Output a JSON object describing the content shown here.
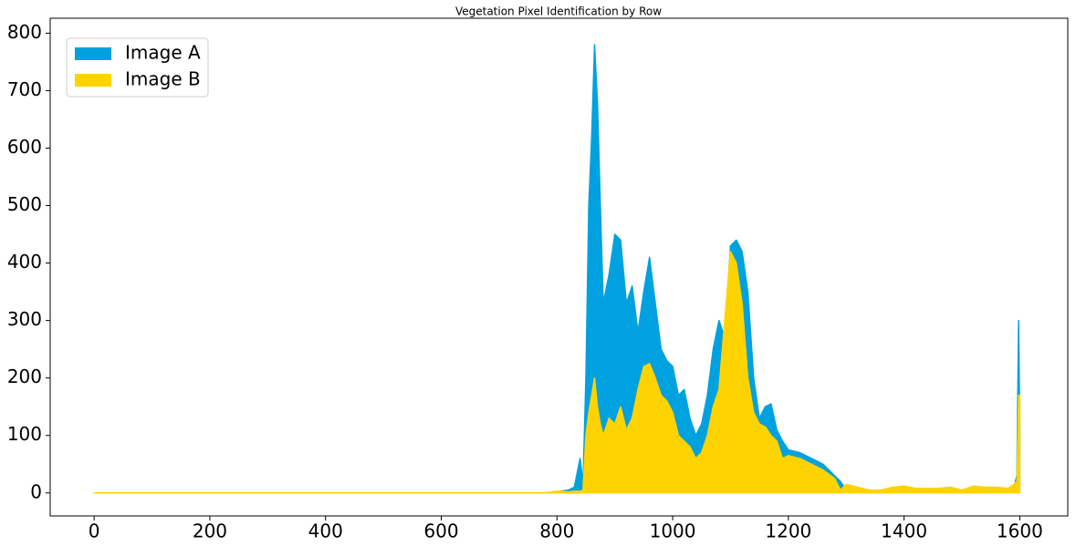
{
  "chart_data": {
    "type": "area",
    "title": "Vegetation Pixel Identification by Row",
    "x": [
      0,
      780,
      800,
      820,
      830,
      840,
      845,
      850,
      855,
      860,
      865,
      870,
      875,
      880,
      890,
      900,
      910,
      920,
      930,
      940,
      950,
      960,
      970,
      980,
      990,
      1000,
      1010,
      1020,
      1030,
      1040,
      1050,
      1060,
      1070,
      1080,
      1090,
      1100,
      1110,
      1120,
      1130,
      1140,
      1150,
      1160,
      1170,
      1180,
      1190,
      1200,
      1220,
      1240,
      1260,
      1280,
      1290,
      1300,
      1320,
      1340,
      1360,
      1380,
      1400,
      1420,
      1440,
      1460,
      1480,
      1500,
      1520,
      1540,
      1560,
      1580,
      1590,
      1595,
      1598,
      1600
    ],
    "series": [
      {
        "name": "Image A",
        "color": "#00a1df",
        "values": [
          0,
          0,
          2,
          5,
          10,
          60,
          15,
          200,
          500,
          620,
          780,
          680,
          500,
          330,
          380,
          450,
          440,
          330,
          360,
          280,
          350,
          410,
          330,
          250,
          230,
          220,
          170,
          180,
          130,
          100,
          120,
          170,
          250,
          300,
          270,
          430,
          440,
          420,
          350,
          200,
          130,
          150,
          155,
          110,
          90,
          75,
          70,
          60,
          50,
          30,
          20,
          5,
          5,
          3,
          3,
          5,
          3,
          3,
          5,
          3,
          3,
          3,
          3,
          5,
          3,
          3,
          10,
          30,
          300,
          120
        ]
      },
      {
        "name": "Image B",
        "color": "#ffd300",
        "values": [
          0,
          0,
          3,
          2,
          3,
          3,
          5,
          100,
          140,
          170,
          200,
          150,
          120,
          100,
          130,
          120,
          150,
          110,
          130,
          180,
          220,
          225,
          200,
          170,
          160,
          140,
          100,
          90,
          80,
          60,
          70,
          100,
          150,
          180,
          300,
          420,
          400,
          330,
          200,
          140,
          120,
          115,
          100,
          90,
          60,
          65,
          60,
          50,
          40,
          25,
          5,
          15,
          10,
          5,
          5,
          10,
          12,
          8,
          8,
          8,
          10,
          5,
          12,
          10,
          10,
          8,
          15,
          20,
          170,
          170
        ]
      }
    ],
    "xlim": [
      -76,
      1683
    ],
    "ylim": [
      -40,
      826
    ],
    "xticks": [
      0,
      200,
      400,
      600,
      800,
      1000,
      1200,
      1400,
      1600
    ],
    "yticks": [
      0,
      100,
      200,
      300,
      400,
      500,
      600,
      700,
      800
    ],
    "legend": "upper left"
  }
}
